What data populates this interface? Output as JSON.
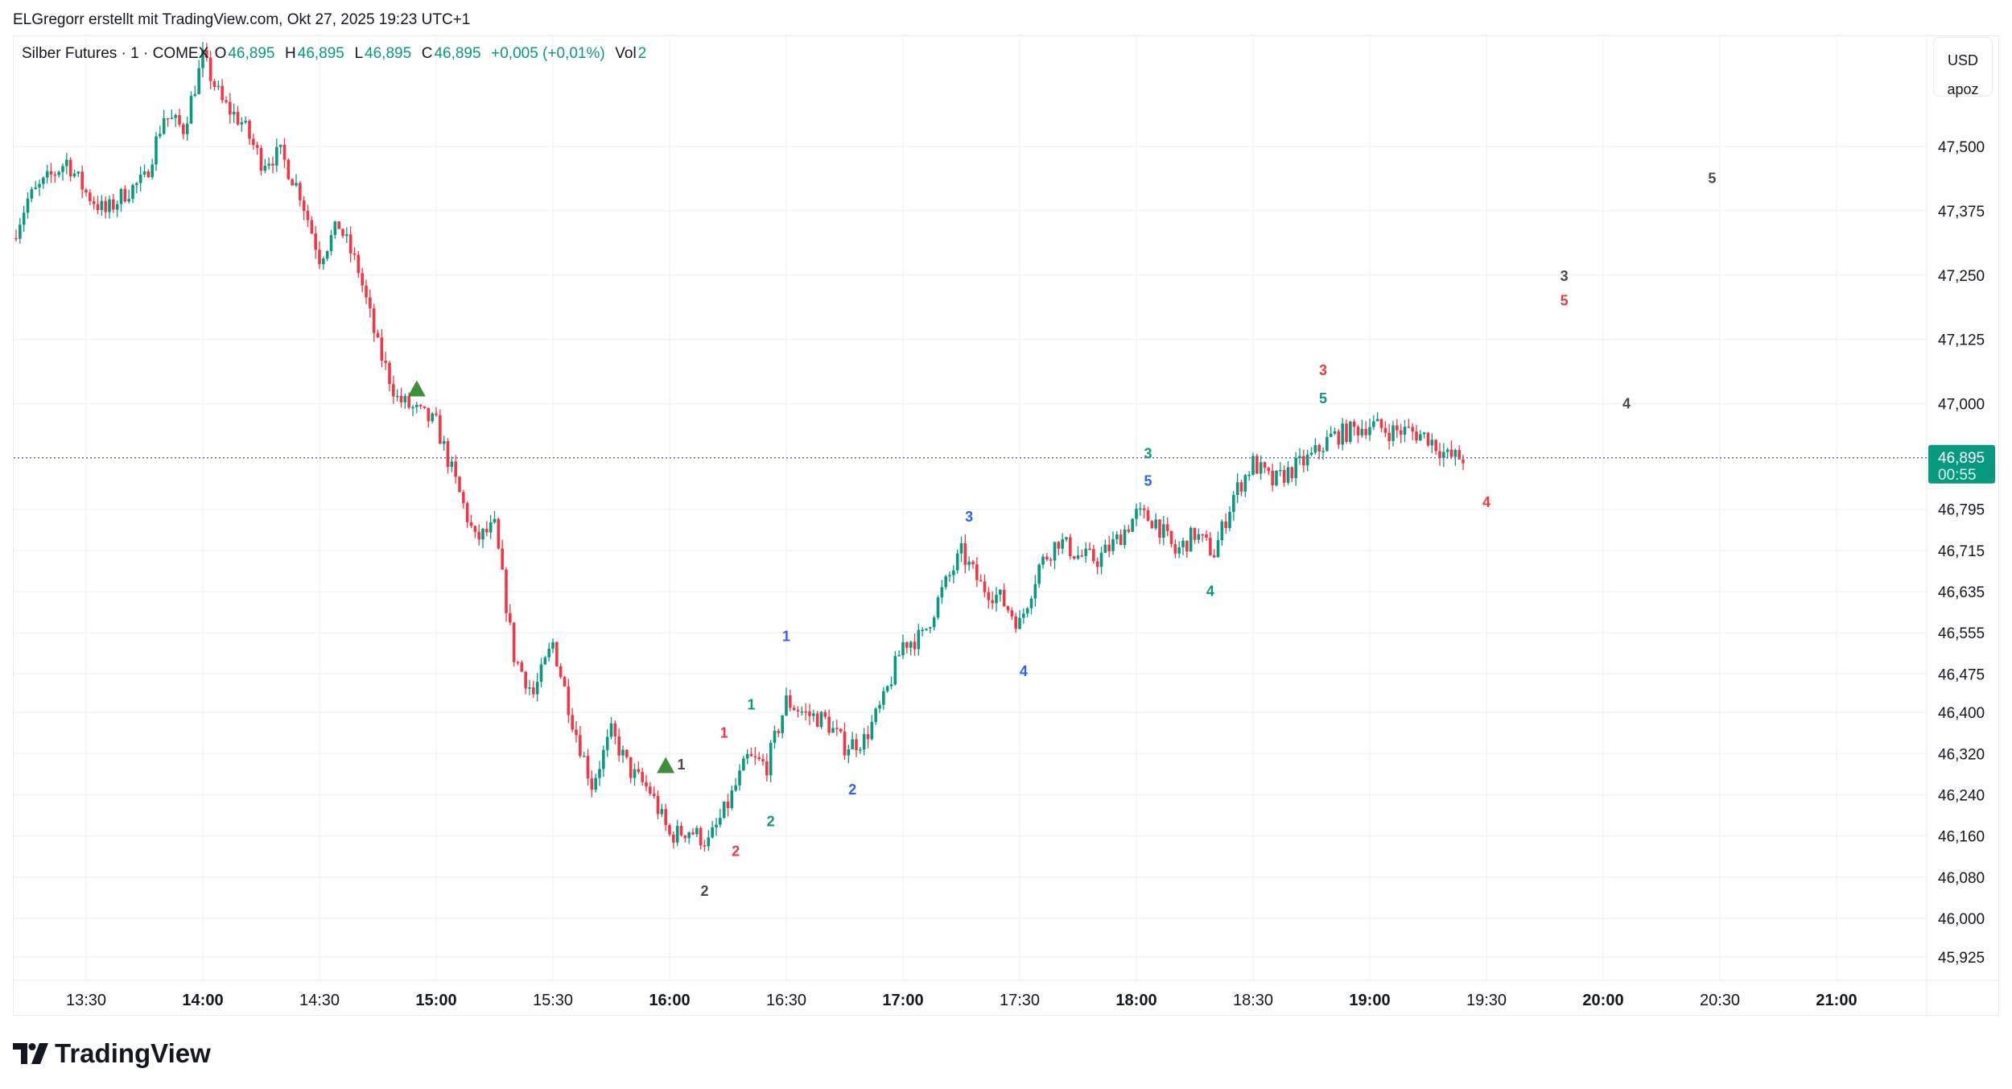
{
  "credit": "ELGregorr erstellt mit TradingView.com, Okt 27, 2025 19:23 UTC+1",
  "legend": {
    "symbol": "Silber Futures · 1 · COMEX",
    "o_label": "O",
    "o": "46,895",
    "h_label": "H",
    "h": "46,895",
    "l_label": "L",
    "l": "46,895",
    "c_label": "C",
    "c": "46,895",
    "change": "+0,005 (+0,01%)",
    "vol_label": "Vol",
    "vol": "2"
  },
  "axis_unit": {
    "currency": "USD",
    "unit": "apoz"
  },
  "current_price": {
    "value": "46,895",
    "countdown": "00:55",
    "color": "#089981"
  },
  "brand": "TradingView",
  "colors": {
    "up": "#089981",
    "down": "#f23645",
    "grid": "#f2f3f5",
    "blue": "#2962ff",
    "gray": "#4a4a4a",
    "triangle": "#3f8f3a"
  },
  "chart_data": {
    "type": "candlestick",
    "interval": "1 minute",
    "ylim": [
      45890,
      47740
    ],
    "xlim": [
      "13:11",
      "21:22"
    ],
    "price_ticks": [
      "47,500",
      "47,375",
      "47,250",
      "47,125",
      "47,000",
      "46,795",
      "46,715",
      "46,635",
      "46,555",
      "46,475",
      "46,400",
      "46,320",
      "46,240",
      "46,160",
      "46,080",
      "46,000",
      "45,925"
    ],
    "time_ticks": [
      {
        "t": "13:30",
        "bold": false
      },
      {
        "t": "14:00",
        "bold": true
      },
      {
        "t": "14:30",
        "bold": false
      },
      {
        "t": "15:00",
        "bold": true
      },
      {
        "t": "15:30",
        "bold": false
      },
      {
        "t": "16:00",
        "bold": true
      },
      {
        "t": "16:30",
        "bold": false
      },
      {
        "t": "17:00",
        "bold": true
      },
      {
        "t": "17:30",
        "bold": false
      },
      {
        "t": "18:00",
        "bold": true
      },
      {
        "t": "18:30",
        "bold": false
      },
      {
        "t": "19:00",
        "bold": true
      },
      {
        "t": "19:30",
        "bold": false
      },
      {
        "t": "20:00",
        "bold": true
      },
      {
        "t": "20:30",
        "bold": false
      },
      {
        "t": "21:00",
        "bold": true
      }
    ],
    "close_path": [
      [
        "13:11",
        47322
      ],
      [
        "13:15",
        47397
      ],
      [
        "13:20",
        47435
      ],
      [
        "13:25",
        47472
      ],
      [
        "13:30",
        47410
      ],
      [
        "13:35",
        47372
      ],
      [
        "13:40",
        47410
      ],
      [
        "13:45",
        47435
      ],
      [
        "13:50",
        47560
      ],
      [
        "13:55",
        47535
      ],
      [
        "14:00",
        47672
      ],
      [
        "14:05",
        47585
      ],
      [
        "14:10",
        47547
      ],
      [
        "14:15",
        47472
      ],
      [
        "14:20",
        47485
      ],
      [
        "14:25",
        47410
      ],
      [
        "14:30",
        47285
      ],
      [
        "14:35",
        47347
      ],
      [
        "14:40",
        47260
      ],
      [
        "14:45",
        47110
      ],
      [
        "14:50",
        47010
      ],
      [
        "14:55",
        46985
      ],
      [
        "15:00",
        46960
      ],
      [
        "15:05",
        46847
      ],
      [
        "15:10",
        46735
      ],
      [
        "15:15",
        46760
      ],
      [
        "15:20",
        46510
      ],
      [
        "15:25",
        46435
      ],
      [
        "15:30",
        46535
      ],
      [
        "15:35",
        46385
      ],
      [
        "15:40",
        46260
      ],
      [
        "15:45",
        46360
      ],
      [
        "15:50",
        46285
      ],
      [
        "15:55",
        46247
      ],
      [
        "16:00",
        46160
      ],
      [
        "16:05",
        46172
      ],
      [
        "16:10",
        46147
      ],
      [
        "16:15",
        46222
      ],
      [
        "16:20",
        46310
      ],
      [
        "16:25",
        46297
      ],
      [
        "16:30",
        46422
      ],
      [
        "16:35",
        46397
      ],
      [
        "16:40",
        46385
      ],
      [
        "16:45",
        46335
      ],
      [
        "16:50",
        46347
      ],
      [
        "16:55",
        46422
      ],
      [
        "17:00",
        46535
      ],
      [
        "17:05",
        46547
      ],
      [
        "17:10",
        46635
      ],
      [
        "17:15",
        46710
      ],
      [
        "17:20",
        46647
      ],
      [
        "17:25",
        46622
      ],
      [
        "17:30",
        46572
      ],
      [
        "17:35",
        46685
      ],
      [
        "17:40",
        46735
      ],
      [
        "17:45",
        46705
      ],
      [
        "17:50",
        46697
      ],
      [
        "17:55",
        46735
      ],
      [
        "18:00",
        46785
      ],
      [
        "18:05",
        46772
      ],
      [
        "18:10",
        46710
      ],
      [
        "18:15",
        46747
      ],
      [
        "18:20",
        46710
      ],
      [
        "18:25",
        46822
      ],
      [
        "18:30",
        46885
      ],
      [
        "18:35",
        46847
      ],
      [
        "18:40",
        46872
      ],
      [
        "18:45",
        46897
      ],
      [
        "18:50",
        46935
      ],
      [
        "18:55",
        46947
      ],
      [
        "19:00",
        46960
      ],
      [
        "19:05",
        46947
      ],
      [
        "19:10",
        46947
      ],
      [
        "19:15",
        46935
      ],
      [
        "19:20",
        46897
      ],
      [
        "19:24",
        46895
      ]
    ],
    "markers": [
      {
        "type": "triangle-up",
        "t": "14:55",
        "price": 47030
      },
      {
        "type": "triangle-up",
        "t": "15:59",
        "price": 46298
      }
    ],
    "annotations": [
      {
        "text": "5",
        "t": "20:28",
        "price": 47440,
        "color": "gray"
      },
      {
        "text": "3",
        "t": "19:50",
        "price": 47250,
        "color": "gray"
      },
      {
        "text": "5",
        "t": "19:50",
        "price": 47202,
        "color": "down"
      },
      {
        "text": "3",
        "t": "18:48",
        "price": 47067,
        "color": "down"
      },
      {
        "text": "5",
        "t": "18:48",
        "price": 47012,
        "color": "up"
      },
      {
        "text": "4",
        "t": "20:06",
        "price": 47002,
        "color": "gray"
      },
      {
        "text": "3",
        "t": "18:03",
        "price": 46905,
        "color": "up"
      },
      {
        "text": "5",
        "t": "18:03",
        "price": 46852,
        "color": "blue"
      },
      {
        "text": "4",
        "t": "19:30",
        "price": 46810,
        "color": "down"
      },
      {
        "text": "3",
        "t": "17:17",
        "price": 46782,
        "color": "blue"
      },
      {
        "text": "4",
        "t": "18:19",
        "price": 46637,
        "color": "up"
      },
      {
        "text": "1",
        "t": "16:30",
        "price": 46550,
        "color": "blue"
      },
      {
        "text": "4",
        "t": "17:31",
        "price": 46482,
        "color": "blue"
      },
      {
        "text": "1",
        "t": "16:21",
        "price": 46417,
        "color": "up"
      },
      {
        "text": "1",
        "t": "16:14",
        "price": 46362,
        "color": "down"
      },
      {
        "text": "2",
        "t": "16:47",
        "price": 46252,
        "color": "blue"
      },
      {
        "text": "2",
        "t": "16:26",
        "price": 46190,
        "color": "up"
      },
      {
        "text": "2",
        "t": "16:17",
        "price": 46132,
        "color": "down"
      },
      {
        "text": "2",
        "t": "16:09",
        "price": 46055,
        "color": "gray"
      },
      {
        "text": "1",
        "t": "16:03",
        "price": 46300,
        "color": "gray"
      }
    ]
  }
}
